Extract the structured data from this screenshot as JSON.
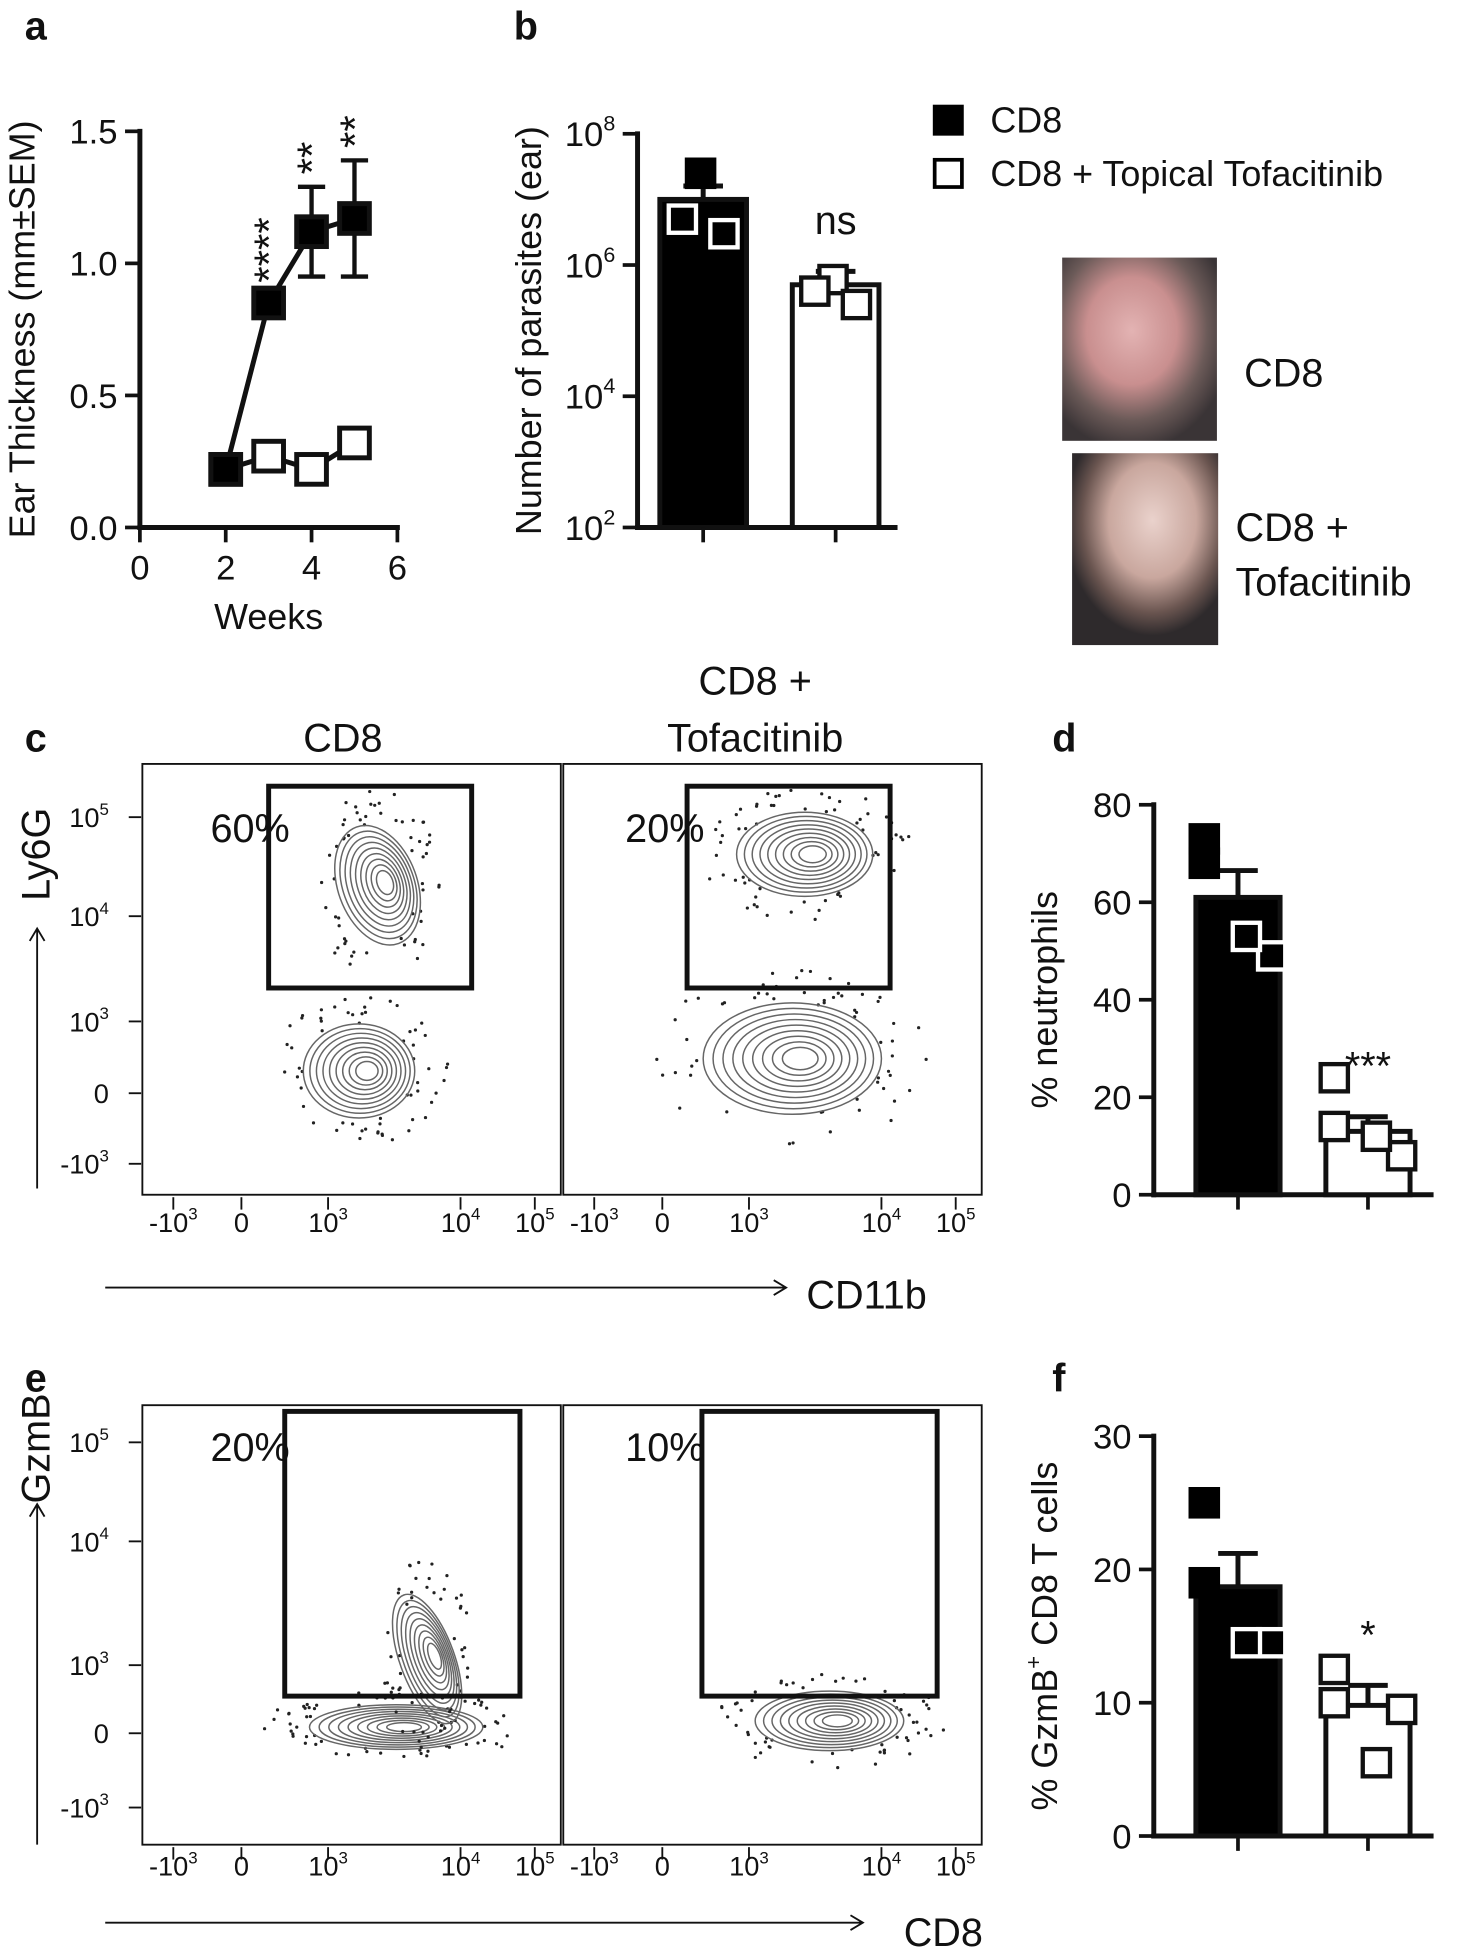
{
  "legend": [
    "CD8",
    "CD8 + Topical Tofacitinib"
  ],
  "chart_data": [
    {
      "type": "line",
      "panel": "a",
      "xlabel": "Weeks",
      "ylabel": "Ear Thickness (mm±SEM)",
      "x": [
        2,
        3,
        4,
        5
      ],
      "series": [
        {
          "name": "CD8",
          "color": "#000000",
          "values": [
            0.22,
            0.85,
            1.12,
            1.17
          ],
          "errors": [
            0.03,
            0.03,
            0.17,
            0.22
          ]
        },
        {
          "name": "CD8 + Topical Tofacitinib",
          "color": "#ffffff",
          "values": [
            0.22,
            0.27,
            0.22,
            0.32
          ]
        }
      ],
      "xlim": [
        0,
        6
      ],
      "xticks": [
        0,
        2,
        4,
        6
      ],
      "ylim": [
        0,
        1.5
      ],
      "yticks": [
        {
          "value": 0,
          "label": "0.0"
        },
        {
          "value": 0.5,
          "label": "0.5"
        },
        {
          "value": 1,
          "label": "1.0"
        },
        {
          "value": 1.5,
          "label": "1.5"
        }
      ],
      "annotations": [
        {
          "x": 3,
          "text": "****"
        },
        {
          "x": 4,
          "text": "**"
        },
        {
          "x": 5,
          "text": "**"
        }
      ]
    },
    {
      "type": "bar",
      "panel": "b",
      "ylabel": "Number of parasites  (ear)",
      "log_scale": true,
      "categories": [
        null,
        null
      ],
      "values": [
        10000000,
        500000
      ],
      "errors": [
        6000000,
        300000
      ],
      "colors": [
        "#000000",
        "#ffffff"
      ],
      "points": [
        [
          25000000,
          5000000,
          3000000
        ],
        [
          600000,
          400000,
          250000
        ]
      ],
      "ylim": [
        100,
        100000000
      ],
      "yticks": [
        {
          "value": 100,
          "label": "10",
          "sup": "2"
        },
        {
          "value": 10000,
          "label": "10",
          "sup": "4"
        },
        {
          "value": 1000000,
          "label": "10",
          "sup": "6"
        },
        {
          "value": 100000000,
          "label": "10",
          "sup": "8"
        }
      ],
      "annotations": [
        {
          "category": 1,
          "text": "ns"
        }
      ]
    },
    {
      "type": "bar",
      "panel": "d",
      "ylabel": "% neutrophils",
      "categories": [
        null,
        null
      ],
      "values": [
        61,
        13
      ],
      "errors": [
        5.5,
        3
      ],
      "colors": [
        "#000000",
        "#ffffff"
      ],
      "points": [
        [
          73,
          68,
          49,
          53
        ],
        [
          24,
          14,
          8,
          12
        ]
      ],
      "ylim": [
        0,
        80
      ],
      "yticks": [
        0,
        20,
        40,
        60,
        80
      ],
      "annotations": [
        {
          "category": 1,
          "text": "***"
        }
      ]
    },
    {
      "type": "bar",
      "panel": "f",
      "ylabel": [
        "% GzmB",
        "+",
        " CD8 T cells"
      ],
      "categories": [
        null,
        null
      ],
      "values": [
        18.7,
        9.8
      ],
      "errors": [
        2.5,
        1.5
      ],
      "colors": [
        "#000000",
        "#ffffff"
      ],
      "points": [
        [
          25,
          19,
          14.5,
          14.5
        ],
        [
          12.5,
          10,
          9.5,
          5.5
        ]
      ],
      "ylim": [
        0,
        30
      ],
      "yticks": [
        0,
        10,
        20,
        30
      ],
      "annotations": [
        {
          "category": 1,
          "text": "*"
        }
      ]
    }
  ],
  "photos": [
    {
      "label": [
        "CD8"
      ]
    },
    {
      "label": [
        "CD8 +",
        "Tofacitinib"
      ]
    }
  ],
  "flow_ticks": [
    {
      "base": "-10",
      "exp": "3"
    },
    {
      "base": "0"
    },
    {
      "base": "10",
      "exp": "3"
    },
    {
      "base": "10",
      "exp": "4"
    },
    {
      "base": "10",
      "exp": "5"
    }
  ],
  "flow_panels": [
    {
      "panel": "c",
      "ylabel": "Ly6G",
      "xlabel": "CD11b",
      "columns": [
        [
          "CD8"
        ],
        [
          "CD8 +",
          "Tofacitinib"
        ]
      ],
      "gate_percents": [
        "60%",
        "20%"
      ]
    },
    {
      "panel": "e",
      "ylabel": "GzmB",
      "xlabel": "CD8",
      "gate_percents": [
        "20%",
        "10%"
      ]
    }
  ]
}
